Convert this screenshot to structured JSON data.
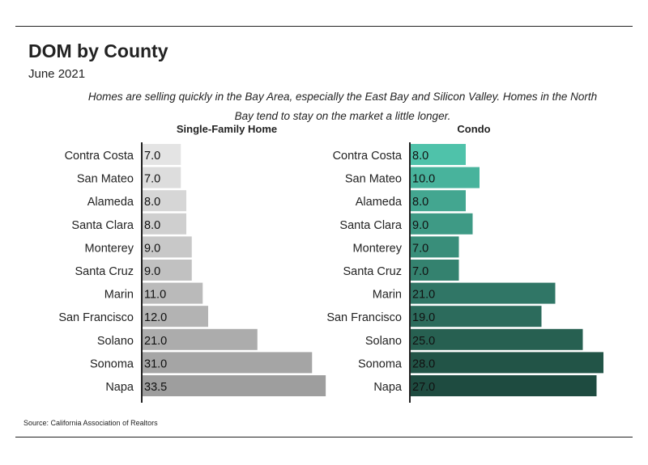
{
  "title": "DOM by County",
  "subtitle": "June 2021",
  "note": "Homes are selling quickly in the Bay Area, especially the East Bay and Silicon Valley. Homes in the North Bay tend to stay on the market a little longer.",
  "source": "Source:  California Association of Realtors",
  "chart_data": [
    {
      "type": "bar",
      "orientation": "horizontal",
      "title": "Single-Family Home",
      "categories": [
        "Contra Costa",
        "San Mateo",
        "Alameda",
        "Santa Clara",
        "Monterey",
        "Santa Cruz",
        "Marin",
        "San Francisco",
        "Solano",
        "Sonoma",
        "Napa"
      ],
      "values": [
        7.0,
        7.0,
        8.0,
        8.0,
        9.0,
        9.0,
        11.0,
        12.0,
        21.0,
        31.0,
        33.5
      ],
      "value_labels": [
        "7.0",
        "7.0",
        "8.0",
        "8.0",
        "9.0",
        "9.0",
        "11.0",
        "12.0",
        "21.0",
        "31.0",
        "33.5"
      ],
      "colors": [
        "#e4e4e4",
        "#dddddd",
        "#d6d6d6",
        "#cfcfcf",
        "#c8c8c8",
        "#c1c1c1",
        "#bababa",
        "#b3b3b3",
        "#acacac",
        "#a5a5a5",
        "#9e9e9e"
      ]
    },
    {
      "type": "bar",
      "orientation": "horizontal",
      "title": "Condo",
      "categories": [
        "Contra Costa",
        "San Mateo",
        "Alameda",
        "Santa Clara",
        "Monterey",
        "Santa Cruz",
        "Marin",
        "San Francisco",
        "Solano",
        "Sonoma",
        "Napa"
      ],
      "values": [
        8.0,
        10.0,
        8.0,
        9.0,
        7.0,
        7.0,
        21.0,
        19.0,
        25.0,
        28.0,
        27.0
      ],
      "value_labels": [
        "8.0",
        "10.0",
        "8.0",
        "9.0",
        "7.0",
        "7.0",
        "21.0",
        "19.0",
        "25.0",
        "28.0",
        "27.0"
      ],
      "colors": [
        "#4fc2aa",
        "#48b39c",
        "#43a690",
        "#3e9a85",
        "#398e7a",
        "#34826f",
        "#307666",
        "#2c6b5c",
        "#276051",
        "#225447",
        "#1e4b40"
      ]
    }
  ]
}
